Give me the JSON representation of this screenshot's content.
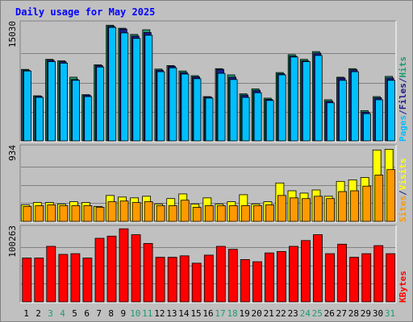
{
  "chart_data": {
    "type": "bar",
    "title": "Daily usage for May 2025",
    "categories": [
      "1",
      "2",
      "3",
      "4",
      "5",
      "6",
      "7",
      "8",
      "9",
      "10",
      "11",
      "12",
      "13",
      "14",
      "15",
      "16",
      "17",
      "18",
      "19",
      "20",
      "21",
      "22",
      "23",
      "24",
      "25",
      "26",
      "27",
      "28",
      "29",
      "30",
      "31"
    ],
    "weekend_days": [
      "3",
      "4",
      "10",
      "11",
      "17",
      "18",
      "24",
      "25",
      "31"
    ],
    "panels": [
      {
        "name": "hits-panel",
        "ymax": 15030,
        "ymax_label": "15030",
        "side_label": [
          "Pages",
          "/",
          "Files",
          "/",
          "Hits"
        ],
        "series": [
          {
            "name": "Hits",
            "color": "#1f9a6e",
            "values": [
              9200,
              5800,
              10500,
              10300,
              8200,
              5950,
              9800,
              14900,
              14500,
              13700,
              14300,
              9250,
              9700,
              9000,
              8400,
              5700,
              9300,
              8500,
              6050,
              6700,
              5500,
              8800,
              11100,
              10500,
              11500,
              5300,
              8200,
              9300,
              3900,
              5700,
              8300
            ]
          },
          {
            "name": "Files",
            "color": "#1a1a8a",
            "values": [
              9100,
              5750,
              10400,
              10200,
              7900,
              5900,
              9700,
              14750,
              14400,
              13500,
              13950,
              9100,
              9600,
              8800,
              8250,
              5650,
              9200,
              8200,
              5900,
              6500,
              5350,
              8650,
              10900,
              10300,
              11300,
              5100,
              8100,
              9150,
              3700,
              5550,
              8100
            ]
          },
          {
            "name": "Pages",
            "color": "#00bfff",
            "values": [
              9000,
              5600,
              10200,
              10000,
              7800,
              5700,
              9500,
              14600,
              13900,
              13200,
              13600,
              8900,
              9400,
              8600,
              8000,
              5500,
              8700,
              7900,
              5600,
              6200,
              5200,
              8500,
              10800,
              10200,
              11000,
              4900,
              7800,
              8900,
              3500,
              5300,
              7800
            ]
          }
        ]
      },
      {
        "name": "visits-panel",
        "ymax": 934,
        "ymax_label": "934",
        "side_label": [
          "Sites",
          "/",
          "Visits"
        ],
        "series": [
          {
            "name": "Visits",
            "color": "#ffff00",
            "values": [
              210,
              240,
              240,
              220,
              250,
              240,
              190,
              330,
              310,
              300,
              320,
              220,
              290,
              350,
              220,
              300,
              220,
              250,
              340,
              220,
              250,
              490,
              390,
              360,
              400,
              320,
              510,
              530,
              560,
              910,
              920
            ]
          },
          {
            "name": "Sites",
            "color": "#ff9900",
            "values": [
              190,
              200,
              210,
              200,
              200,
              200,
              180,
              250,
              260,
              240,
              250,
              200,
              200,
              270,
              180,
              200,
              200,
              200,
              200,
              200,
              210,
              330,
              300,
              290,
              320,
              290,
              380,
              390,
              450,
              590,
              660
            ]
          }
        ]
      },
      {
        "name": "kbytes-panel",
        "ymax": 100263,
        "ymax_label": "100263",
        "side_label": [
          "KBytes"
        ],
        "series": [
          {
            "name": "KBytes",
            "color": "#ff0000",
            "values": [
              60000,
              60000,
              76000,
              65000,
              66000,
              60000,
              87000,
              90000,
              100000,
              92000,
              80000,
              61000,
              61000,
              63000,
              53000,
              64000,
              76000,
              72000,
              58000,
              55000,
              67000,
              69000,
              76000,
              84000,
              92000,
              66000,
              79000,
              61000,
              66000,
              77000,
              66000
            ]
          }
        ]
      }
    ]
  }
}
